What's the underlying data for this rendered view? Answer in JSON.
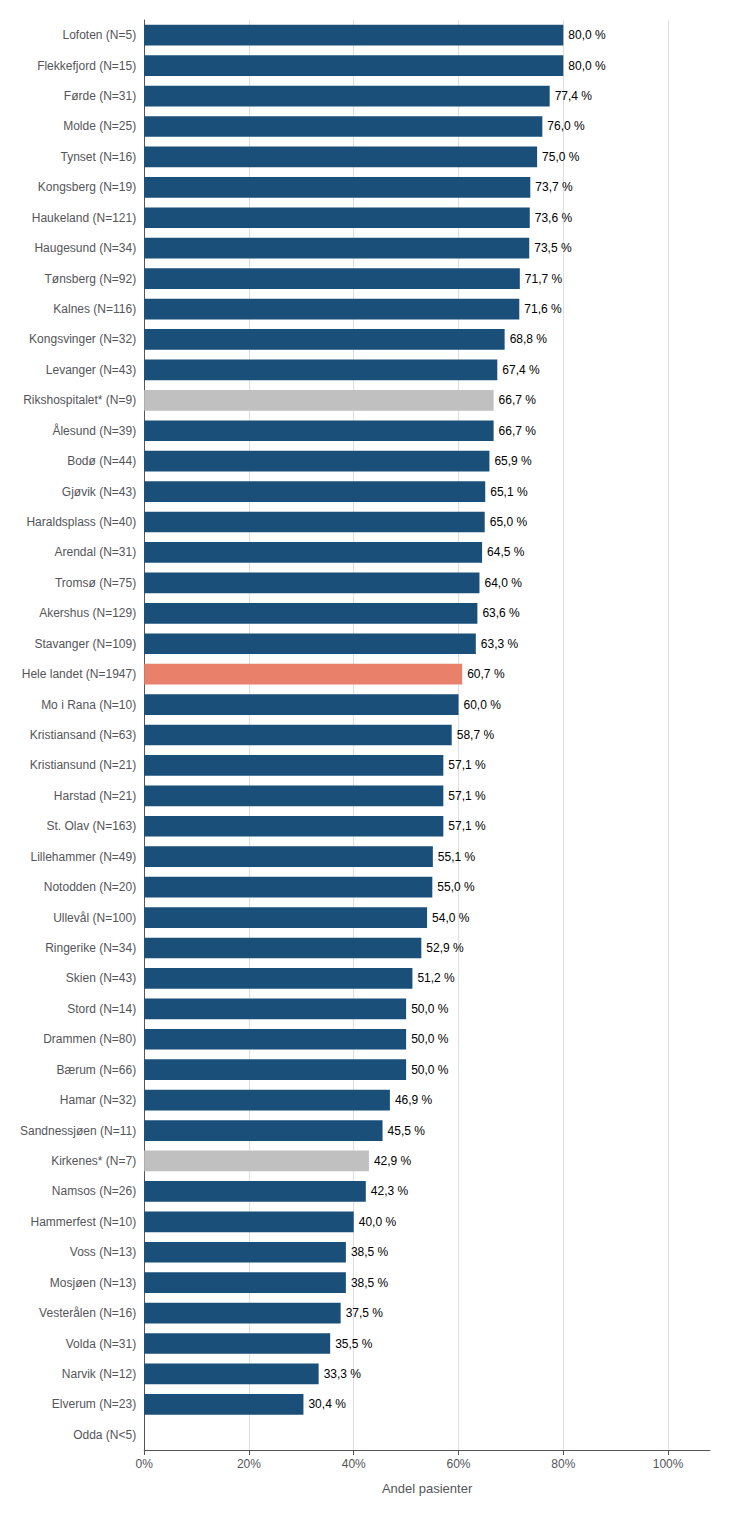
{
  "chart_data": {
    "type": "bar",
    "orientation": "horizontal",
    "xlabel": "Andel pasienter",
    "categories": [
      "Lofoten (N=5)",
      "Flekkefjord (N=15)",
      "Førde (N=31)",
      "Molde (N=25)",
      "Tynset (N=16)",
      "Kongsberg (N=19)",
      "Haukeland (N=121)",
      "Haugesund (N=34)",
      "Tønsberg (N=92)",
      "Kalnes (N=116)",
      "Kongsvinger (N=32)",
      "Levanger (N=43)",
      "Rikshospitalet* (N=9)",
      "Ålesund (N=39)",
      "Bodø (N=44)",
      "Gjøvik (N=43)",
      "Haraldsplass (N=40)",
      "Arendal (N=31)",
      "Tromsø (N=75)",
      "Akershus (N=129)",
      "Stavanger (N=109)",
      "Hele landet (N=1947)",
      "Mo i Rana (N=10)",
      "Kristiansand (N=63)",
      "Kristiansund (N=21)",
      "Harstad (N=21)",
      "St. Olav (N=163)",
      "Lillehammer (N=49)",
      "Notodden (N=20)",
      "Ullevål (N=100)",
      "Ringerike (N=34)",
      "Skien (N=43)",
      "Stord (N=14)",
      "Drammen (N=80)",
      "Bærum (N=66)",
      "Hamar (N=32)",
      "Sandnessjøen (N=11)",
      "Kirkenes* (N=7)",
      "Namsos (N=26)",
      "Hammerfest (N=10)",
      "Voss (N=13)",
      "Mosjøen (N=13)",
      "Vesterålen (N=16)",
      "Volda (N=31)",
      "Narvik (N=12)",
      "Elverum (N=23)",
      "Odda (N<5)"
    ],
    "values": [
      80.0,
      80.0,
      77.4,
      76.0,
      75.0,
      73.7,
      73.6,
      73.5,
      71.7,
      71.6,
      68.8,
      67.4,
      66.7,
      66.7,
      65.9,
      65.1,
      65.0,
      64.5,
      64.0,
      63.6,
      63.3,
      60.7,
      60.0,
      58.7,
      57.1,
      57.1,
      57.1,
      55.1,
      55.0,
      54.0,
      52.9,
      51.2,
      50.0,
      50.0,
      50.0,
      46.9,
      45.5,
      42.9,
      42.3,
      40.0,
      38.5,
      38.5,
      37.5,
      35.5,
      33.3,
      30.4,
      0.0
    ],
    "value_labels": [
      "80,0 %",
      "80,0 %",
      "77,4 %",
      "76,0 %",
      "75,0 %",
      "73,7 %",
      "73,6 %",
      "73,5 %",
      "71,7 %",
      "71,6 %",
      "68,8 %",
      "67,4 %",
      "66,7 %",
      "66,7 %",
      "65,9 %",
      "65,1 %",
      "65,0 %",
      "64,5 %",
      "64,0 %",
      "63,6 %",
      "63,3 %",
      "60,7 %",
      "60,0 %",
      "58,7 %",
      "57,1 %",
      "57,1 %",
      "57,1 %",
      "55,1 %",
      "55,0 %",
      "54,0 %",
      "52,9 %",
      "51,2 %",
      "50,0 %",
      "50,0 %",
      "50,0 %",
      "46,9 %",
      "45,5 %",
      "42,9 %",
      "42,3 %",
      "40,0 %",
      "38,5 %",
      "38,5 %",
      "37,5 %",
      "35,5 %",
      "33,3 %",
      "30,4 %",
      null
    ],
    "colors": [
      "#1a4f7a",
      "#1a4f7a",
      "#1a4f7a",
      "#1a4f7a",
      "#1a4f7a",
      "#1a4f7a",
      "#1a4f7a",
      "#1a4f7a",
      "#1a4f7a",
      "#1a4f7a",
      "#1a4f7a",
      "#1a4f7a",
      "#c0c0c0",
      "#1a4f7a",
      "#1a4f7a",
      "#1a4f7a",
      "#1a4f7a",
      "#1a4f7a",
      "#1a4f7a",
      "#1a4f7a",
      "#1a4f7a",
      "#e8806a",
      "#1a4f7a",
      "#1a4f7a",
      "#1a4f7a",
      "#1a4f7a",
      "#1a4f7a",
      "#1a4f7a",
      "#1a4f7a",
      "#1a4f7a",
      "#1a4f7a",
      "#1a4f7a",
      "#1a4f7a",
      "#1a4f7a",
      "#1a4f7a",
      "#1a4f7a",
      "#1a4f7a",
      "#c0c0c0",
      "#1a4f7a",
      "#1a4f7a",
      "#1a4f7a",
      "#1a4f7a",
      "#1a4f7a",
      "#1a4f7a",
      "#1a4f7a",
      "#1a4f7a",
      "#1a4f7a"
    ],
    "xlim": [
      0,
      108
    ],
    "xticks": [
      {
        "value": 0,
        "label": "0%"
      },
      {
        "value": 20,
        "label": "20%"
      },
      {
        "value": 40,
        "label": "40%"
      },
      {
        "value": 60,
        "label": "60%"
      },
      {
        "value": 80,
        "label": "80%"
      },
      {
        "value": 100,
        "label": "100%"
      }
    ],
    "grid": true,
    "data_labels": true
  }
}
